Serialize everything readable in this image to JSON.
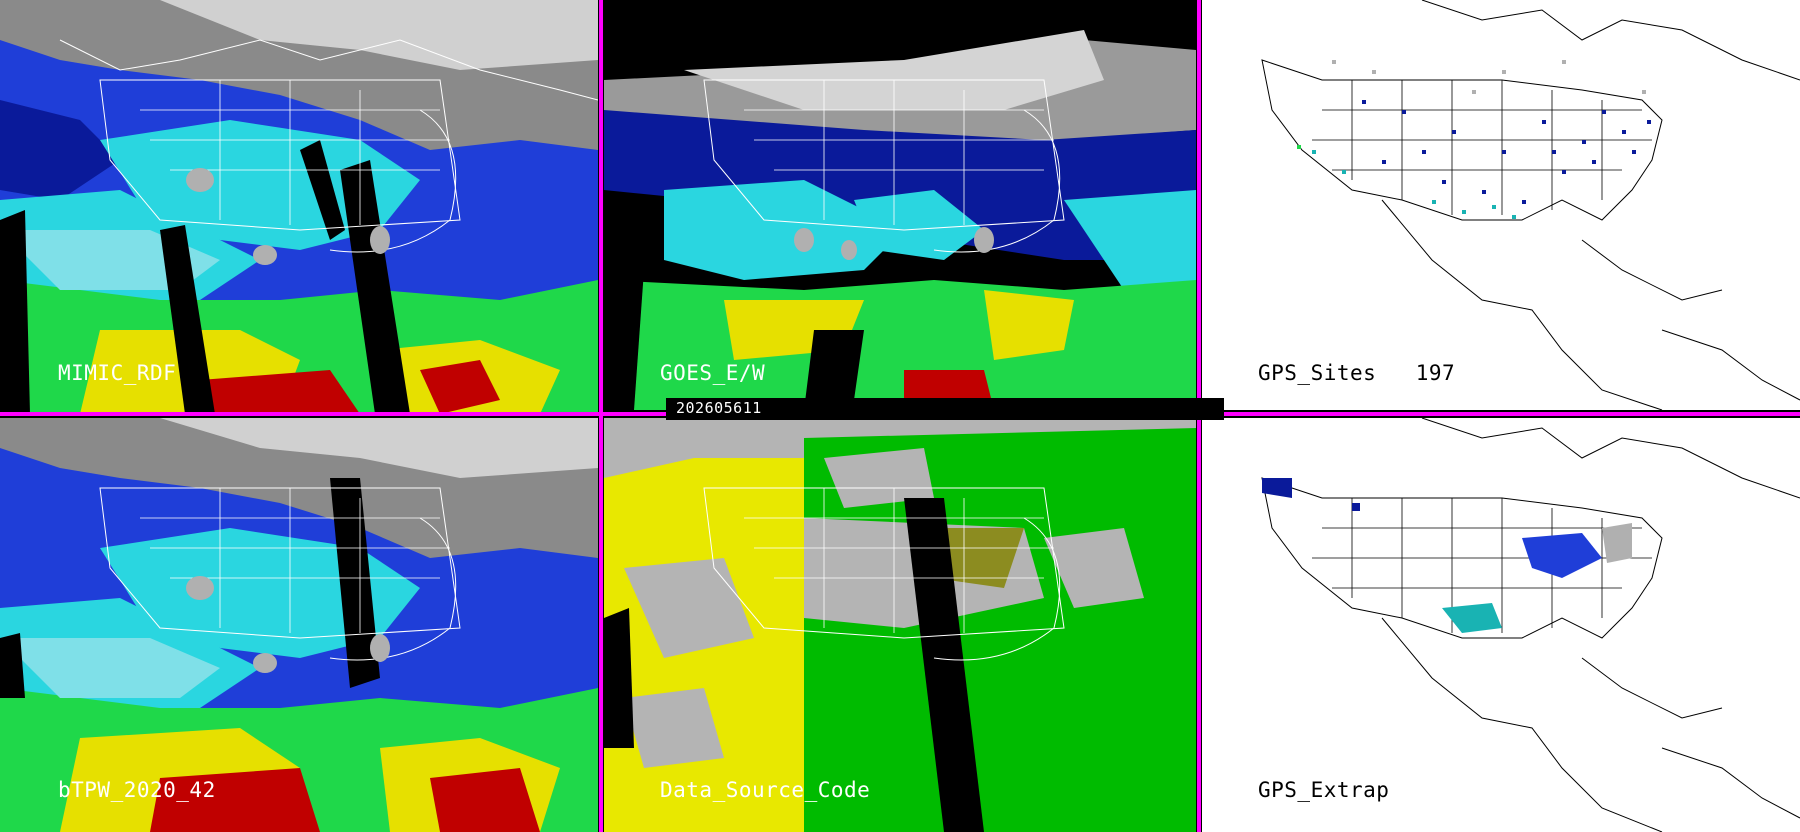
{
  "display": {
    "timestamp": "202605611",
    "colors": {
      "divider": "#ff00ff",
      "precip_low_gray": "#b0b0b0",
      "precip_blue_dark": "#0a1a9a",
      "precip_blue": "#1f3ed8",
      "precip_cyan": "#2ad6e0",
      "precip_teal": "#19b3b3",
      "precip_green": "#1fd84a",
      "precip_yellow": "#e6e000",
      "precip_orange": "#d6a000",
      "precip_red": "#c00000",
      "source_yellow": "#e8e800",
      "source_green": "#00bb00",
      "source_olive": "#8c8c20",
      "source_gray": "#b4b4b4",
      "gps_background": "#ffffff"
    }
  },
  "panels": [
    {
      "id": "mimic",
      "label": "MIMIC_RDF"
    },
    {
      "id": "goes",
      "label": "GOES_E/W"
    },
    {
      "id": "gps_sites",
      "label": "GPS_Sites",
      "count": "197"
    },
    {
      "id": "btpw",
      "label": "bTPW_2020_42"
    },
    {
      "id": "data_source",
      "label": "Data_Source_Code"
    },
    {
      "id": "gps_extrap",
      "label": "GPS_Extrap"
    }
  ]
}
